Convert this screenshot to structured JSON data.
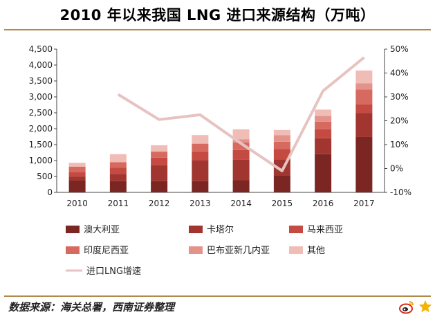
{
  "header": {
    "title": "2010 年以来我国 LNG 进口来源结构（万吨）"
  },
  "footer": {
    "source": "数据来源：海关总署，西南证券整理"
  },
  "chart_data": {
    "type": "bar",
    "stacked": true,
    "categories": [
      "2010",
      "2011",
      "2012",
      "2013",
      "2014",
      "2015",
      "2016",
      "2017"
    ],
    "series": [
      {
        "name": "澳大利亚",
        "color": "#7b2622",
        "values": [
          370,
          350,
          350,
          350,
          380,
          540,
          1200,
          1740
        ]
      },
      {
        "name": "卡塔尔",
        "color": "#a0362f",
        "values": [
          120,
          230,
          500,
          650,
          650,
          500,
          500,
          750
        ]
      },
      {
        "name": "马来西亚",
        "color": "#c44a42",
        "values": [
          140,
          200,
          240,
          280,
          300,
          320,
          280,
          270
        ]
      },
      {
        "name": "印度尼西亚",
        "color": "#d76a60",
        "values": [
          180,
          170,
          190,
          250,
          240,
          230,
          240,
          470
        ]
      },
      {
        "name": "巴布亚新几内亚",
        "color": "#e3938a",
        "values": [
          0,
          0,
          0,
          0,
          100,
          210,
          180,
          200
        ]
      },
      {
        "name": "其他",
        "color": "#efbdb6",
        "values": [
          120,
          250,
          200,
          270,
          310,
          160,
          200,
          400
        ]
      }
    ],
    "line": {
      "name": "进口LNG增速",
      "color": "#e6c3c1",
      "axis": "right",
      "values": [
        null,
        31,
        20.5,
        22.5,
        10.5,
        -1,
        32.5,
        46.5
      ]
    },
    "left_axis": {
      "ylim": [
        0,
        4500
      ],
      "ticks": [
        "4,500",
        "4,000",
        "3,500",
        "3,000",
        "2,500",
        "2,000",
        "1,500",
        "1,000",
        "500",
        "0"
      ]
    },
    "right_axis": {
      "ylim": [
        -10,
        50
      ],
      "ticks": [
        "50%",
        "40%",
        "30%",
        "20%",
        "10%",
        "0%",
        "-10%"
      ]
    },
    "grid": false,
    "legend_position": "bottom"
  },
  "icons": {
    "weibo": "weibo-icon",
    "star": "star-icon"
  }
}
